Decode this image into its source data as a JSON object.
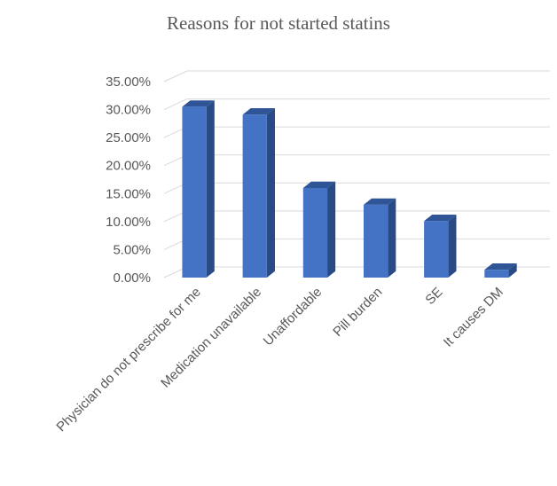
{
  "chart_data": {
    "type": "bar",
    "title": "Reasons for not started statins",
    "categories": [
      "Physician do not prescribe for me",
      "Medication unavailable",
      "Unaffordable",
      "Pill burden",
      "SE",
      "It causes DM"
    ],
    "values": [
      30.5,
      29.1,
      16.0,
      13.0,
      10.1,
      1.4
    ],
    "ylim": [
      0,
      35
    ],
    "yticks": [
      "0.00%",
      "5.00%",
      "10.00%",
      "15.00%",
      "20.00%",
      "25.00%",
      "30.00%",
      "35.00%"
    ],
    "grid": true,
    "style": "3d-column",
    "colors": {
      "front": "#4472c4",
      "side": "#2a4a85",
      "top": "#2f5597"
    }
  }
}
